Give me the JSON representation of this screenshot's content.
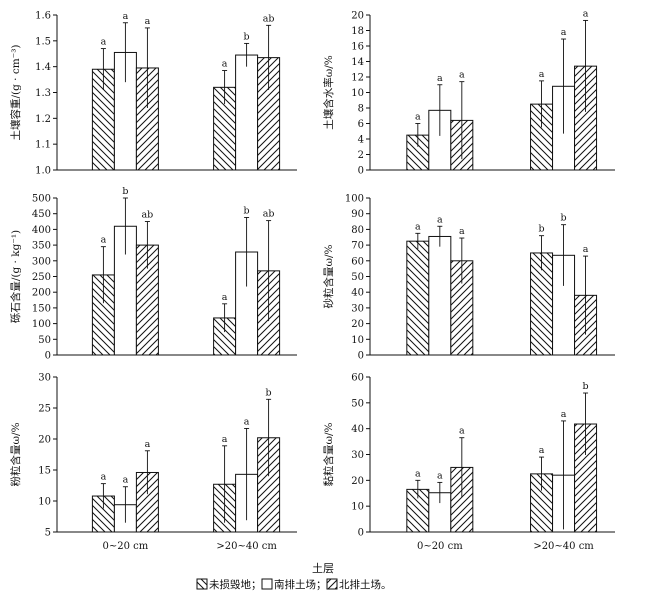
{
  "figure": {
    "xlabel": "土层",
    "legend_sep": "；",
    "legend_end": "。",
    "patterns": [
      "diag-down",
      "white",
      "diag-up"
    ]
  },
  "chart_data": [
    {
      "type": "bar",
      "id": "bulk-density",
      "ylabel": "土壤容重/(g · cm⁻³)",
      "ylim": [
        1.0,
        1.6
      ],
      "yticks": [
        "1.0",
        "1.1",
        "1.2",
        "1.3",
        "1.4",
        "1.5",
        "1.6"
      ],
      "categories": [
        "0~20 cm",
        ">20~40 cm"
      ],
      "series": [
        {
          "name": "未损毁地",
          "values": [
            1.39,
            1.32
          ],
          "errors": [
            0.08,
            0.065
          ],
          "letters": [
            "a",
            "a"
          ]
        },
        {
          "name": "南排土场",
          "values": [
            1.455,
            1.445
          ],
          "errors": [
            0.115,
            0.045
          ],
          "letters": [
            "a",
            "b"
          ]
        },
        {
          "name": "北排土场",
          "values": [
            1.395,
            1.435
          ],
          "errors": [
            0.155,
            0.125
          ],
          "letters": [
            "a",
            "ab"
          ]
        }
      ]
    },
    {
      "type": "bar",
      "id": "soil-water",
      "ylabel": "土壤含水率ω/%",
      "ylim": [
        0,
        20
      ],
      "yticks": [
        "0",
        "2",
        "4",
        "6",
        "8",
        "10",
        "12",
        "14",
        "16",
        "18",
        "20"
      ],
      "categories": [
        "0~20 cm",
        ">20~40 cm"
      ],
      "series": [
        {
          "name": "未损毁地",
          "values": [
            4.5,
            8.5
          ],
          "errors": [
            1.5,
            3.0
          ],
          "letters": [
            "a",
            "a"
          ]
        },
        {
          "name": "南排土场",
          "values": [
            7.7,
            10.8
          ],
          "errors": [
            3.3,
            6.1
          ],
          "letters": [
            "a",
            "a"
          ]
        },
        {
          "name": "北排土场",
          "values": [
            6.4,
            13.4
          ],
          "errors": [
            5.0,
            5.9
          ],
          "letters": [
            "a",
            "a"
          ]
        }
      ]
    },
    {
      "type": "bar",
      "id": "gravel",
      "ylabel": "砾石含量/(g · kg⁻¹)",
      "ylim": [
        0,
        500
      ],
      "yticks": [
        "0",
        "50",
        "100",
        "150",
        "200",
        "250",
        "300",
        "350",
        "400",
        "450",
        "500"
      ],
      "categories": [
        "0~20 cm",
        ">20~40 cm"
      ],
      "series": [
        {
          "name": "未损毁地",
          "values": [
            255,
            118
          ],
          "errors": [
            90,
            45
          ],
          "letters": [
            "a",
            "a"
          ]
        },
        {
          "name": "南排土场",
          "values": [
            410,
            328
          ],
          "errors": [
            90,
            110
          ],
          "letters": [
            "b",
            "b"
          ]
        },
        {
          "name": "北排土场",
          "values": [
            350,
            268
          ],
          "errors": [
            75,
            160
          ],
          "letters": [
            "ab",
            "ab"
          ]
        }
      ]
    },
    {
      "type": "bar",
      "id": "sand",
      "ylabel": "砂粒含量ω/%",
      "ylim": [
        0,
        100
      ],
      "yticks": [
        "0",
        "10",
        "20",
        "30",
        "40",
        "50",
        "60",
        "70",
        "80",
        "90",
        "100"
      ],
      "categories": [
        "0~20 cm",
        ">20~40 cm"
      ],
      "series": [
        {
          "name": "未损毁地",
          "values": [
            72.5,
            65
          ],
          "errors": [
            5,
            11
          ],
          "letters": [
            "a",
            "b"
          ]
        },
        {
          "name": "南排土场",
          "values": [
            75.5,
            63.5
          ],
          "errors": [
            6.5,
            19.5
          ],
          "letters": [
            "a",
            "b"
          ]
        },
        {
          "name": "北排土场",
          "values": [
            60,
            38
          ],
          "errors": [
            14.5,
            25
          ],
          "letters": [
            "a",
            "a"
          ]
        }
      ]
    },
    {
      "type": "bar",
      "id": "silt",
      "ylabel": "粉粒含量ω/%",
      "ylim": [
        5,
        30
      ],
      "yticks": [
        "5",
        "10",
        "15",
        "20",
        "25",
        "30"
      ],
      "categories": [
        "0~20 cm",
        ">20~40 cm"
      ],
      "series": [
        {
          "name": "未损毁地",
          "values": [
            10.8,
            12.7
          ],
          "errors": [
            2.0,
            6.2
          ],
          "letters": [
            "a",
            "a"
          ]
        },
        {
          "name": "南排土场",
          "values": [
            9.4,
            14.3
          ],
          "errors": [
            2.9,
            7.4
          ],
          "letters": [
            "a",
            "a"
          ]
        },
        {
          "name": "北排土场",
          "values": [
            14.6,
            20.2
          ],
          "errors": [
            3.5,
            6.2
          ],
          "letters": [
            "a",
            "b"
          ]
        }
      ]
    },
    {
      "type": "bar",
      "id": "clay",
      "ylabel": "黏粒含量ω/%",
      "ylim": [
        0,
        60
      ],
      "yticks": [
        "0",
        "10",
        "20",
        "30",
        "40",
        "50",
        "60"
      ],
      "categories": [
        "0~20 cm",
        ">20~40 cm"
      ],
      "series": [
        {
          "name": "未损毁地",
          "values": [
            16.5,
            22.5
          ],
          "errors": [
            3.5,
            6.5
          ],
          "letters": [
            "a",
            "a"
          ]
        },
        {
          "name": "南排土场",
          "values": [
            15.2,
            22.0
          ],
          "errors": [
            4.0,
            21.0
          ],
          "letters": [
            "a",
            "a"
          ]
        },
        {
          "name": "北排土场",
          "values": [
            25.0,
            41.8
          ],
          "errors": [
            11.5,
            12.0
          ],
          "letters": [
            "a",
            "b"
          ]
        }
      ]
    }
  ]
}
